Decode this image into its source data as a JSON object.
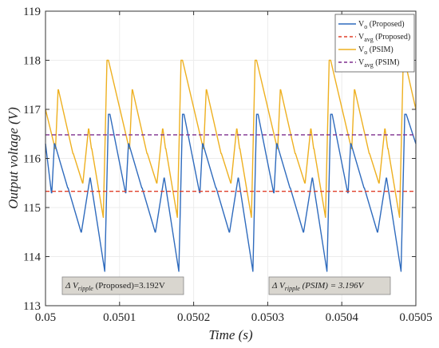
{
  "chart_data": {
    "type": "line",
    "xlabel": "Time (s)",
    "ylabel": "Output voltage (V)",
    "xlim": [
      0.05,
      0.0505
    ],
    "ylim": [
      113,
      119
    ],
    "x_ticks": [
      "0.05",
      "0.0501",
      "0.0502",
      "0.0503",
      "0.0504",
      "0.0505"
    ],
    "y_ticks": [
      "113",
      "114",
      "115",
      "116",
      "117",
      "118",
      "119"
    ],
    "grid": true,
    "legend_position": "top-right",
    "series": [
      {
        "name": "Vo (Proposed)",
        "legend_base": "V",
        "legend_sub": "o",
        "legend_suffix": " (Proposed)",
        "color": "#2f6bbd",
        "style": "solid",
        "x": [
          0.05,
          0.050008,
          0.0500085,
          0.050012,
          0.0500125,
          0.05003,
          0.0500305,
          0.050048,
          0.0500485,
          0.05006,
          0.0500605,
          0.05008,
          0.050085,
          0.050087,
          0.050108,
          0.0501085,
          0.050112,
          0.0501125,
          0.05013,
          0.0501305,
          0.050148,
          0.0501485,
          0.05016,
          0.0501605,
          0.05018,
          0.050185,
          0.050187,
          0.050208,
          0.0502085,
          0.050212,
          0.0502125,
          0.05023,
          0.0502305,
          0.050248,
          0.0502485,
          0.05026,
          0.0502605,
          0.05028,
          0.050285,
          0.050287,
          0.050308,
          0.0503085,
          0.050312,
          0.0503125,
          0.05033,
          0.0503305,
          0.050348,
          0.0503485,
          0.05036,
          0.0503605,
          0.05038,
          0.050385,
          0.050387,
          0.050408,
          0.0504085,
          0.050412,
          0.0504125,
          0.05043,
          0.0504305,
          0.050448,
          0.0504485,
          0.05046,
          0.0504605,
          0.05048,
          0.050485,
          0.050487,
          0.0505
        ],
        "y": [
          116.3,
          115.3,
          115.3,
          116.3,
          116.3,
          115.4,
          115.4,
          114.5,
          114.5,
          115.6,
          115.6,
          113.7,
          116.9,
          116.9,
          115.3,
          115.3,
          116.3,
          116.3,
          115.4,
          115.4,
          114.5,
          114.5,
          115.6,
          115.6,
          113.7,
          116.9,
          116.9,
          115.3,
          115.3,
          116.3,
          116.3,
          115.4,
          115.4,
          114.5,
          114.5,
          115.6,
          115.6,
          113.7,
          116.9,
          116.9,
          115.3,
          115.3,
          116.3,
          116.3,
          115.4,
          115.4,
          114.5,
          114.5,
          115.6,
          115.6,
          113.7,
          116.9,
          116.9,
          115.3,
          115.3,
          116.3,
          116.3,
          115.4,
          115.4,
          114.5,
          114.5,
          115.6,
          115.6,
          113.7,
          116.9,
          116.9,
          116.3
        ]
      },
      {
        "name": "Vavg (Proposed)",
        "legend_base": "V",
        "legend_sub": "avg",
        "legend_suffix": " (Proposed)",
        "color": "#e0402a",
        "style": "dashed",
        "x": [
          0.05,
          0.0505
        ],
        "y": [
          115.33,
          115.33
        ]
      },
      {
        "name": "Vo (PSIM)",
        "legend_base": "V",
        "legend_sub": "o",
        "legend_suffix": " (PSIM)",
        "color": "#eeb020",
        "style": "solid",
        "x": [
          0.05,
          0.050013,
          0.0500135,
          0.050017,
          0.0500175,
          0.050037,
          0.0500375,
          0.05005,
          0.0500505,
          0.050058,
          0.0500585,
          0.050062,
          0.0500625,
          0.050078,
          0.050083,
          0.050085,
          0.050113,
          0.0501135,
          0.050117,
          0.0501175,
          0.050137,
          0.0501375,
          0.05015,
          0.0501505,
          0.050158,
          0.0501585,
          0.050162,
          0.0501625,
          0.050178,
          0.050183,
          0.050185,
          0.050213,
          0.0502135,
          0.050217,
          0.0502175,
          0.050237,
          0.0502375,
          0.05025,
          0.0502505,
          0.050258,
          0.0502585,
          0.050262,
          0.0502625,
          0.050278,
          0.050283,
          0.050285,
          0.050313,
          0.0503135,
          0.050317,
          0.0503175,
          0.050337,
          0.0503375,
          0.05035,
          0.0503505,
          0.050358,
          0.0503585,
          0.050362,
          0.0503625,
          0.050378,
          0.050383,
          0.050385,
          0.050413,
          0.0504135,
          0.050417,
          0.0504175,
          0.050437,
          0.0504375,
          0.05045,
          0.0504505,
          0.050458,
          0.0504585,
          0.050462,
          0.0504625,
          0.050478,
          0.050483,
          0.050485,
          0.0505
        ],
        "y": [
          117.0,
          116.2,
          116.2,
          117.4,
          117.4,
          116.1,
          116.1,
          115.5,
          115.5,
          116.6,
          116.6,
          116.2,
          116.2,
          114.8,
          118.0,
          118.0,
          116.2,
          116.2,
          117.4,
          117.4,
          116.1,
          116.1,
          115.5,
          115.5,
          116.6,
          116.6,
          116.2,
          116.2,
          114.8,
          118.0,
          118.0,
          116.2,
          116.2,
          117.4,
          117.4,
          116.1,
          116.1,
          115.5,
          115.5,
          116.6,
          116.6,
          116.2,
          116.2,
          114.8,
          118.0,
          118.0,
          116.2,
          116.2,
          117.4,
          117.4,
          116.1,
          116.1,
          115.5,
          115.5,
          116.6,
          116.6,
          116.2,
          116.2,
          114.8,
          118.0,
          118.0,
          116.2,
          116.2,
          117.4,
          117.4,
          116.1,
          116.1,
          115.5,
          115.5,
          116.6,
          116.6,
          116.2,
          116.2,
          114.8,
          118.0,
          118.0,
          117.0
        ]
      },
      {
        "name": "Vavg (PSIM)",
        "legend_base": "V",
        "legend_sub": "avg",
        "legend_suffix": " (PSIM)",
        "color": "#7e2f8e",
        "style": "dashed",
        "x": [
          0.05,
          0.0505
        ],
        "y": [
          116.48,
          116.48
        ]
      }
    ],
    "annotations": [
      {
        "id": "proposed",
        "prefix": "Δ V",
        "sub": "ripple",
        "suffix": "   (Proposed)=3.192V",
        "sub_italic": true,
        "suffix_italic": false
      },
      {
        "id": "psim",
        "prefix": "Δ V",
        "sub": "ripple",
        "suffix": " (PSIM) = 3.196V",
        "sub_italic": true,
        "suffix_italic": true
      }
    ]
  }
}
